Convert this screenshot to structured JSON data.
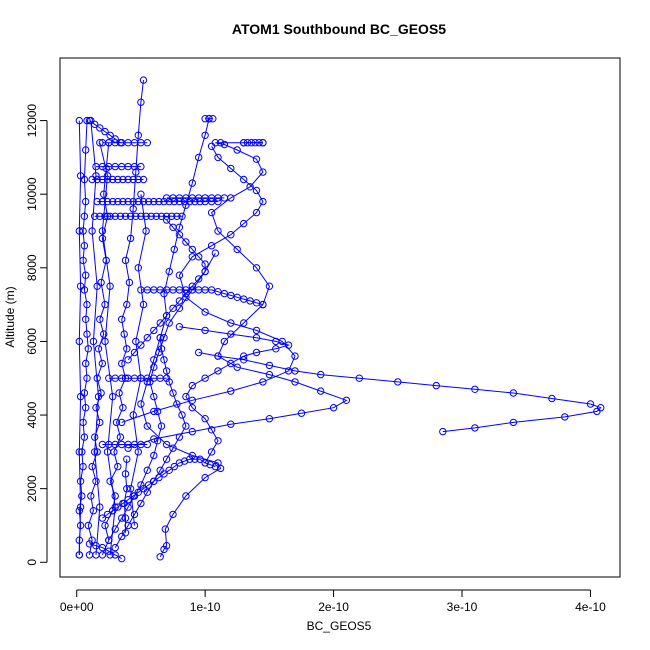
{
  "chart_data": {
    "type": "scatter",
    "title": "ATOM1 Southbound BC_GEOS5",
    "xlabel": "BC_GEOS5",
    "ylabel": "Altitude (m)",
    "xlim": [
      -1.3e-11,
      4.23e-10
    ],
    "ylim": [
      -400,
      13700
    ],
    "x_ticks": [
      0,
      1e-10,
      2e-10,
      3e-10,
      4e-10
    ],
    "x_tick_labels": [
      "0e+00",
      "1e-10",
      "2e-10",
      "3e-10",
      "4e-10"
    ],
    "y_ticks": [
      0,
      2000,
      4000,
      6000,
      8000,
      10000,
      12000
    ],
    "y_tick_labels": [
      "0",
      "2000",
      "4000",
      "6000",
      "8000",
      "10000",
      "12000"
    ],
    "marker": "open-circle",
    "line": "connected",
    "color": "#0000ff",
    "grid": false,
    "legend": "none",
    "series": [
      {
        "x": [
          2e-12,
          2e-12,
          3e-12,
          2e-12,
          4e-12,
          3e-12,
          5e-12,
          4e-12,
          6e-12,
          5e-12,
          7e-12,
          6e-12,
          8e-12,
          7e-12,
          9e-12,
          8e-12,
          7e-12,
          8e-12,
          6e-12,
          7e-12,
          5e-12,
          6e-12,
          5e-12,
          6e-12,
          7e-12,
          6e-12,
          7e-12,
          8e-12
        ],
        "y": [
          200,
          600,
          1000,
          1400,
          1800,
          2200,
          2600,
          3000,
          3400,
          3800,
          4200,
          4600,
          5000,
          5400,
          5800,
          6200,
          6600,
          7000,
          7400,
          7800,
          8200,
          8600,
          9000,
          9400,
          9800,
          10400,
          11200,
          12000
        ]
      },
      {
        "x": [
          1e-11,
          1.2e-11,
          9e-12,
          1.3e-11,
          1.1e-11,
          1.5e-11,
          1.2e-11,
          1.6e-11,
          1.4e-11,
          1.8e-11,
          1.5e-11,
          1.9e-11,
          1.6e-11,
          2e-11,
          1.7e-11,
          2.1e-11,
          1.8e-11,
          2.2e-11,
          1.9e-11,
          2.3e-11,
          2e-11,
          2.4e-11,
          2.1e-11,
          2.3e-11,
          2.5e-11
        ],
        "y": [
          200,
          600,
          1000,
          1400,
          1800,
          2200,
          2600,
          3000,
          3400,
          3800,
          4200,
          4600,
          5000,
          5400,
          5800,
          6200,
          6600,
          7000,
          7600,
          8200,
          8800,
          9400,
          10000,
          10700,
          11400
        ]
      },
      {
        "x": [
          2e-11,
          2.5e-11,
          2.2e-11,
          2.8e-11,
          3e-11,
          2.6e-11,
          3.2e-11,
          2.9e-11,
          3.4e-11,
          3.1e-11,
          3.6e-11,
          3.3e-11,
          3.8e-11,
          3.5e-11,
          3.9e-11,
          3.7e-11,
          3.5e-11,
          3.9e-11,
          4.1e-11,
          3.8e-11,
          4.2e-11,
          4.4e-11,
          4.6e-11,
          4.8e-11,
          5e-11,
          5.2e-11
        ],
        "y": [
          200,
          600,
          1000,
          1400,
          1800,
          2200,
          2600,
          3000,
          3400,
          3800,
          4200,
          4600,
          5000,
          5400,
          5800,
          6200,
          6600,
          7000,
          7600,
          8200,
          8800,
          9600,
          10600,
          11600,
          12500,
          13100
        ]
      },
      {
        "x": [
          6.5e-11,
          6.8e-11,
          7e-11,
          6.9e-11,
          7.5e-11,
          8.5e-11,
          1e-10,
          1.12e-10,
          1.1e-10,
          9e-11,
          7e-11,
          5.5e-11,
          5e-11,
          5.5e-11,
          6e-11,
          6.5e-11,
          7e-11,
          6.8e-11,
          7.2e-11,
          7.6e-11,
          8e-11,
          8.5e-11,
          9e-11,
          9.5e-11,
          1e-10,
          1.03e-10
        ],
        "y": [
          150,
          350,
          450,
          900,
          1300,
          1800,
          2300,
          2550,
          2700,
          2900,
          3200,
          3700,
          4300,
          4900,
          5500,
          6100,
          6700,
          7300,
          7900,
          8500,
          9100,
          9700,
          10300,
          11000,
          11600,
          12050
        ]
      },
      {
        "x": [
          4e-11,
          6e-11,
          9e-11,
          1.2e-10,
          1.5e-10,
          1.75e-10,
          2e-10,
          2.1e-10,
          1.9e-10,
          1.7e-10,
          1.5e-10,
          1.25e-10,
          1.1e-10,
          1.15e-10,
          1.3e-10,
          1.45e-10,
          1.5e-10,
          1.4e-10,
          1.25e-10,
          1.1e-10,
          1.05e-10,
          1.2e-10,
          1.35e-10,
          1.45e-10,
          1.4e-10,
          1.25e-10,
          1.15e-10,
          1.08e-10,
          1.12e-10,
          1.3e-10,
          1.45e-10
        ],
        "y": [
          3100,
          3350,
          3550,
          3750,
          3900,
          4050,
          4200,
          4400,
          4650,
          4900,
          5100,
          5300,
          5600,
          6000,
          6500,
          7000,
          7500,
          8000,
          8500,
          9000,
          9500,
          9900,
          10200,
          10600,
          10950,
          11200,
          11350,
          11400,
          11400,
          11400,
          11400
        ]
      },
      {
        "x": [
          3.5e-11,
          6e-11,
          9e-11,
          1.2e-10,
          1.45e-10,
          1.65e-10,
          1.7e-10,
          1.6e-10,
          1.4e-10,
          1.2e-10,
          1e-10,
          8.5e-11,
          8e-11,
          9e-11,
          1.05e-10,
          1.2e-10,
          1.3e-10,
          1.4e-10,
          1.45e-10,
          1.4e-10,
          1.3e-10,
          1.2e-10,
          1.1e-10,
          1.05e-10
        ],
        "y": [
          3800,
          4100,
          4400,
          4650,
          4900,
          5200,
          5600,
          6000,
          6300,
          6500,
          6800,
          7200,
          7800,
          8300,
          8600,
          8900,
          9200,
          9500,
          9800,
          10100,
          10400,
          10700,
          11000,
          11300
        ]
      },
      {
        "x": [
          2.85e-10,
          3.1e-10,
          3.4e-10,
          3.8e-10,
          4.05e-10,
          4.08e-10,
          4e-10,
          3.7e-10,
          3.4e-10,
          3.1e-10,
          2.8e-10,
          2.5e-10,
          2.2e-10,
          1.9e-10,
          1.7e-10,
          1.5e-10,
          1.3e-10,
          1.1e-10,
          9.5e-11
        ],
        "y": [
          3550,
          3650,
          3800,
          3950,
          4100,
          4200,
          4300,
          4450,
          4600,
          4700,
          4800,
          4900,
          5000,
          5100,
          5200,
          5350,
          5500,
          5600,
          5700
        ]
      },
      {
        "x": [
          8e-11,
          1e-10,
          1.2e-10,
          1.4e-10,
          1.55e-10,
          1.65e-10,
          1.55e-10,
          1.4e-10,
          1.3e-10,
          1.2e-10,
          1.1e-10,
          1e-10,
          9e-11,
          8.5e-11,
          9e-11,
          1e-10,
          1.05e-10,
          1.1e-10,
          1.05e-10,
          1e-10
        ],
        "y": [
          6400,
          6300,
          6200,
          6100,
          6000,
          5900,
          5800,
          5700,
          5600,
          5400,
          5200,
          5000,
          4800,
          4500,
          4200,
          3900,
          3600,
          3300,
          3000,
          2700
        ]
      },
      {
        "x": [
          2.5e-11,
          3e-11,
          3.5e-11,
          4e-11,
          4.5e-11,
          5e-11,
          5.5e-11,
          6e-11,
          6.3e-11,
          6.6e-11,
          6.3e-11,
          6e-11,
          5.7e-11,
          6e-11,
          6.4e-11,
          6.8e-11,
          7.2e-11,
          8e-11,
          9e-11,
          1e-10,
          1.08e-10
        ],
        "y": [
          600,
          900,
          1200,
          1500,
          1800,
          2100,
          2500,
          2900,
          3300,
          3700,
          4100,
          4500,
          4900,
          5300,
          5700,
          6100,
          6500,
          6900,
          7400,
          7900,
          8400
        ]
      },
      {
        "x": [
          3e-11,
          3.5e-11,
          4e-11,
          4.5e-11,
          5e-11,
          5.5e-11,
          6e-11,
          6.5e-11,
          7e-11,
          7.5e-11,
          8e-11,
          8.5e-11,
          8.2e-11,
          7.8e-11,
          7.5e-11,
          7.2e-11,
          7e-11,
          6.8e-11,
          6.6e-11,
          6.5e-11
        ],
        "y": [
          400,
          700,
          1000,
          1300,
          1600,
          1900,
          2200,
          2500,
          2800,
          3100,
          3400,
          3700,
          4000,
          4300,
          4600,
          4900,
          5200,
          5500,
          5800,
          6100
        ]
      },
      {
        "x": [
          4e-11,
          4.5e-11,
          5e-11,
          5.5e-11,
          6e-11,
          6.5e-11,
          7e-11,
          7.5e-11,
          8e-11,
          8.5e-11,
          9e-11,
          9.5e-11,
          1e-10,
          1e-10,
          9.5e-11,
          9e-11,
          8.5e-11,
          8e-11,
          7.5e-11,
          7e-11
        ],
        "y": [
          5500,
          5700,
          5900,
          6100,
          6300,
          6500,
          6700,
          6900,
          7100,
          7300,
          7500,
          7700,
          7900,
          8100,
          8300,
          8500,
          8700,
          8900,
          9100,
          9300
        ]
      },
      {
        "x": [
          5e-11,
          5.5e-11,
          6e-11,
          6.5e-11,
          7e-11,
          7.5e-11,
          8e-11,
          8.5e-11,
          9e-11,
          9.5e-11,
          1e-10,
          1.05e-10,
          1.1e-10,
          1.15e-10,
          1.2e-10,
          1.25e-10,
          1.3e-10,
          1.35e-10,
          1.4e-10,
          1.45e-10
        ],
        "y": [
          7400,
          7400,
          7400,
          7400,
          7400,
          7400,
          7400,
          7400,
          7400,
          7400,
          7400,
          7400,
          7350,
          7300,
          7250,
          7200,
          7150,
          7100,
          7050,
          7000
        ]
      },
      {
        "x": [
          1.6e-11,
          2e-11,
          2.4e-11,
          2.8e-11,
          3.2e-11,
          3.6e-11,
          4e-11,
          4.4e-11,
          4.8e-11,
          5.2e-11,
          5.6e-11,
          6e-11,
          6.4e-11,
          6.8e-11,
          7.2e-11,
          7.6e-11,
          8e-11,
          8.4e-11,
          8.8e-11,
          9.2e-11,
          9.6e-11,
          1e-10,
          1.05e-10,
          1.1e-10
        ],
        "y": [
          9800,
          9800,
          9800,
          9800,
          9800,
          9800,
          9800,
          9800,
          9800,
          9800,
          9800,
          9800,
          9800,
          9800,
          9800,
          9800,
          9800,
          9800,
          9800,
          9800,
          9800,
          9800,
          9800,
          9800
        ]
      },
      {
        "x": [
          1.4e-11,
          1.8e-11,
          2.2e-11,
          2.6e-11,
          3e-11,
          3.4e-11,
          3.8e-11,
          4.2e-11,
          4.6e-11,
          5e-11,
          5.4e-11,
          5.8e-11,
          6.2e-11,
          6.6e-11,
          7e-11,
          7.4e-11,
          7.8e-11,
          8.2e-11
        ],
        "y": [
          9400,
          9400,
          9400,
          9400,
          9400,
          9400,
          9400,
          9400,
          9400,
          9400,
          9400,
          9400,
          9400,
          9400,
          9400,
          9400,
          9400,
          9400
        ]
      },
      {
        "x": [
          1.2e-11,
          1.6e-11,
          2e-11,
          2.4e-11,
          2.8e-11,
          3.2e-11,
          3.6e-11,
          4e-11,
          4.4e-11,
          4.8e-11,
          5.2e-11
        ],
        "y": [
          10400,
          10400,
          10400,
          10400,
          10400,
          10400,
          10400,
          10400,
          10400,
          10400,
          10400
        ]
      },
      {
        "x": [
          1.5e-11,
          2e-11,
          2.5e-11,
          3e-11,
          3.5e-11,
          4e-11,
          4.5e-11,
          5e-11
        ],
        "y": [
          10750,
          10750,
          10750,
          10750,
          10750,
          10750,
          10750,
          10750
        ]
      },
      {
        "x": [
          2e-11,
          2.5e-11,
          3e-11,
          3.5e-11,
          4e-11,
          4.5e-11,
          5e-11,
          5.5e-11
        ],
        "y": [
          11400,
          11400,
          11400,
          11400,
          11400,
          11400,
          11400,
          11400
        ]
      },
      {
        "x": [
          1e-11,
          1.4e-11,
          1.8e-11,
          2.2e-11,
          2.6e-11,
          3e-11,
          3.4e-11
        ],
        "y": [
          12000,
          11900,
          11800,
          11700,
          11600,
          11500,
          11400
        ]
      },
      {
        "x": [
          2.5e-11,
          3e-11,
          3.5e-11,
          4e-11,
          4.5e-11,
          5e-11,
          5.5e-11,
          6e-11,
          6.5e-11,
          7e-11
        ],
        "y": [
          5000,
          5000,
          5000,
          5000,
          5000,
          5000,
          5000,
          5000,
          5000,
          5000
        ]
      },
      {
        "x": [
          2e-11,
          2.5e-11,
          3e-11,
          3.5e-11,
          4e-11,
          4.5e-11,
          5e-11,
          5.5e-11
        ],
        "y": [
          3200,
          3200,
          3200,
          3200,
          3200,
          3200,
          3200,
          3200
        ]
      },
      {
        "x": [
          2e-11,
          2.4e-11,
          2.8e-11,
          3.2e-11,
          3.6e-11,
          4e-11,
          4.4e-11,
          4.8e-11,
          5.2e-11,
          5.6e-11,
          6e-11,
          6.4e-11,
          6.8e-11,
          7.2e-11,
          7.6e-11,
          8e-11,
          8.4e-11,
          8.8e-11,
          9.2e-11,
          9.6e-11,
          1e-10,
          1.04e-10,
          1.08e-10
        ],
        "y": [
          1200,
          1300,
          1400,
          1500,
          1600,
          1700,
          1800,
          1900,
          2000,
          2100,
          2200,
          2300,
          2400,
          2500,
          2600,
          2700,
          2750,
          2800,
          2800,
          2800,
          2700,
          2650,
          2600
        ]
      },
      {
        "x": [
          1e-11,
          1.5e-11,
          2e-11,
          2.5e-11,
          3e-11,
          3.5e-11
        ],
        "y": [
          500,
          450,
          400,
          300,
          200,
          100
        ]
      },
      {
        "x": [
          3.8e-11,
          3.8e-11,
          3.7e-11,
          3.9e-11,
          3.8e-11,
          3.9e-11
        ],
        "y": [
          800,
          1200,
          1600,
          2000,
          2400,
          2800
        ]
      },
      {
        "x": [
          2e-12,
          3e-12,
          2e-12,
          3e-12,
          2e-12,
          3e-12,
          2e-12,
          3e-12,
          2e-12
        ],
        "y": [
          200,
          1500,
          3000,
          4500,
          6000,
          7500,
          9000,
          10500,
          12000
        ]
      },
      {
        "x": [
          1.5e-11,
          1.8e-11,
          1.4e-11,
          1.7e-11,
          1.3e-11,
          1.6e-11,
          1.2e-11,
          1.5e-11,
          1.1e-11
        ],
        "y": [
          200,
          1500,
          3000,
          4500,
          6000,
          7500,
          9000,
          10500,
          12000
        ]
      },
      {
        "x": [
          2.6e-11,
          3e-11,
          2.4e-11,
          2.8e-11,
          2.2e-11,
          2.6e-11,
          2e-11,
          2.4e-11,
          1.8e-11
        ],
        "y": [
          200,
          1500,
          3000,
          4500,
          6000,
          7500,
          9000,
          10500,
          11400
        ]
      },
      {
        "x": [
          4.5e-11,
          4.2e-11,
          4.8e-11,
          4.4e-11,
          5e-11,
          4.6e-11,
          5.2e-11,
          4.8e-11,
          5.4e-11,
          5e-11
        ],
        "y": [
          1000,
          2000,
          3000,
          4000,
          5000,
          6000,
          7000,
          8000,
          9000,
          10000
        ]
      },
      {
        "x": [
          7e-11,
          7.5e-11,
          8e-11,
          8.5e-11,
          9e-11,
          9.5e-11,
          1e-10,
          1.05e-10,
          1.1e-10,
          1.15e-10
        ],
        "y": [
          9900,
          9900,
          9900,
          9900,
          9900,
          9900,
          9900,
          9900,
          9900,
          9900
        ]
      },
      {
        "x": [
          1e-10,
          1.03e-10,
          1.06e-10
        ],
        "y": [
          12050,
          12050,
          12050
        ]
      },
      {
        "x": [
          1.3e-10,
          1.33e-10,
          1.36e-10,
          1.39e-10,
          1.42e-10,
          1.45e-10
        ],
        "y": [
          11400,
          11400,
          11400,
          11400,
          11400,
          11400
        ]
      }
    ]
  }
}
